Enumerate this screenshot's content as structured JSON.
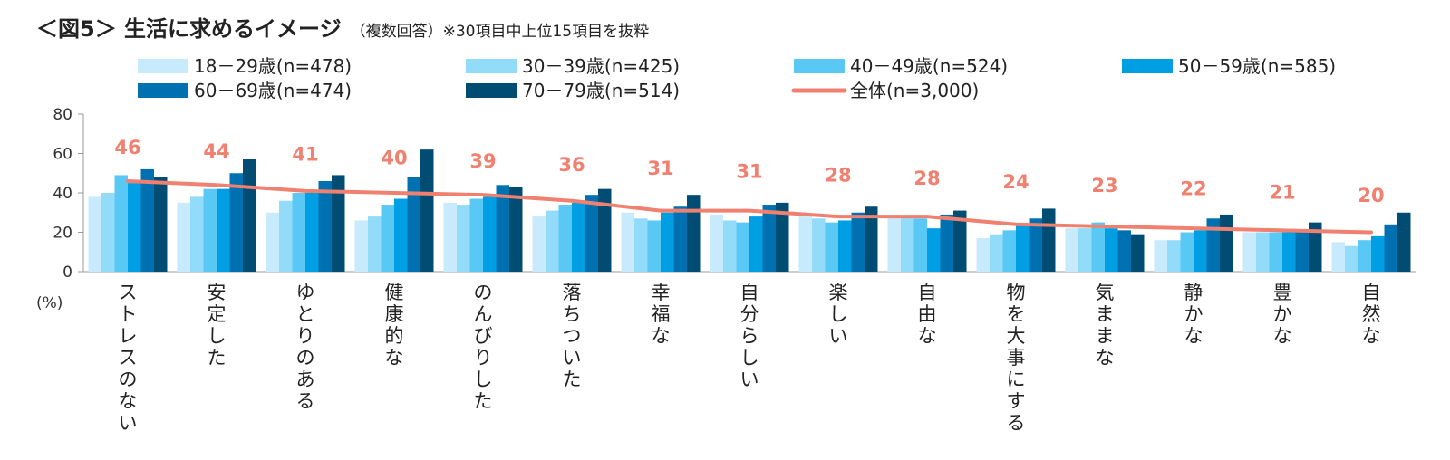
{
  "title": "＜図5＞ 生活に求めるイメージ",
  "subtitle": "（複数回答）※30項目中上位15項目を抜粋",
  "chart_data": {
    "type": "bar",
    "categories": [
      "ストレスのない",
      "安定した",
      "ゆとりのある",
      "健康的な",
      "のんびりした",
      "落ちついた",
      "幸福な",
      "自分らしい",
      "楽しい",
      "自由な",
      "物を大事にする",
      "気ままな",
      "静かな",
      "豊かな",
      "自然な"
    ],
    "ylabel": "(%)",
    "ylim": [
      0,
      80
    ],
    "yticks": [
      0,
      20,
      40,
      60,
      80
    ],
    "grid": false,
    "legend_position": "top",
    "series": [
      {
        "name": "18－29歳(n=478)",
        "color": "#c7eafc",
        "values": [
          38,
          35,
          30,
          26,
          35,
          28,
          30,
          29,
          28,
          29,
          17,
          22,
          16,
          20,
          15
        ]
      },
      {
        "name": "30－39歳(n=425)",
        "color": "#92dcfa",
        "values": [
          40,
          38,
          36,
          28,
          34,
          31,
          27,
          26,
          27,
          28,
          19,
          22,
          16,
          20,
          13
        ]
      },
      {
        "name": "40－49歳(n=524)",
        "color": "#5ac8f5",
        "values": [
          49,
          42,
          40,
          34,
          37,
          34,
          26,
          25,
          25,
          27,
          21,
          25,
          20,
          20,
          16
        ]
      },
      {
        "name": "50－59歳(n=585)",
        "color": "#009fe3",
        "values": [
          45,
          42,
          40,
          37,
          38,
          35,
          30,
          28,
          26,
          22,
          24,
          22,
          21,
          20,
          18
        ]
      },
      {
        "name": "60－69歳(n=474)",
        "color": "#0071b0",
        "values": [
          52,
          50,
          46,
          48,
          44,
          39,
          33,
          34,
          30,
          29,
          27,
          21,
          27,
          21,
          24
        ]
      },
      {
        "name": "70－79歳(n=514)",
        "color": "#004c72",
        "values": [
          48,
          57,
          49,
          62,
          43,
          42,
          39,
          35,
          33,
          31,
          32,
          19,
          29,
          25,
          30
        ]
      },
      {
        "name": "全体(n=3,000)",
        "type": "line",
        "color": "#f08070",
        "values": [
          46,
          44,
          41,
          40,
          39,
          36,
          31,
          31,
          28,
          28,
          24,
          23,
          22,
          21,
          20
        ]
      }
    ]
  }
}
